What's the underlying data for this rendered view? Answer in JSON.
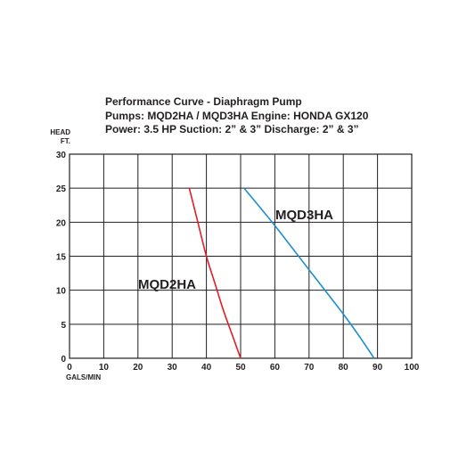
{
  "chart_data": {
    "type": "line",
    "title_lines": [
      "Performance Curve - Diaphragm Pump",
      "Pumps: MQD2HA / MQD3HA Engine: HONDA GX120",
      "Power: 3.5 HP  Suction: 2” & 3”  Discharge: 2” & 3”"
    ],
    "ylabel_lines": [
      "HEAD",
      "FT."
    ],
    "xlabel_lines": [
      "GALS/MIN"
    ],
    "xlim": [
      0,
      100
    ],
    "ylim": [
      0,
      30
    ],
    "x_ticks": [
      "0",
      "10",
      "20",
      "30",
      "40",
      "50",
      "60",
      "70",
      "80",
      "90",
      "100"
    ],
    "y_ticks": [
      "0",
      "5",
      "10",
      "15",
      "20",
      "25",
      "30"
    ],
    "grid": true,
    "series": [
      {
        "name": "MQD2HA",
        "color": "#e31e24",
        "points": [
          [
            35,
            25
          ],
          [
            37.5,
            20
          ],
          [
            40,
            15
          ],
          [
            42.5,
            11
          ],
          [
            45,
            7
          ],
          [
            47.5,
            3.5
          ],
          [
            50,
            0
          ]
        ]
      },
      {
        "name": "MQD3HA",
        "color": "#1b8fd1",
        "points": [
          [
            51,
            25
          ],
          [
            60,
            19.5
          ],
          [
            70,
            13
          ],
          [
            80,
            6.5
          ],
          [
            85,
            3
          ],
          [
            89,
            0
          ]
        ]
      }
    ]
  }
}
